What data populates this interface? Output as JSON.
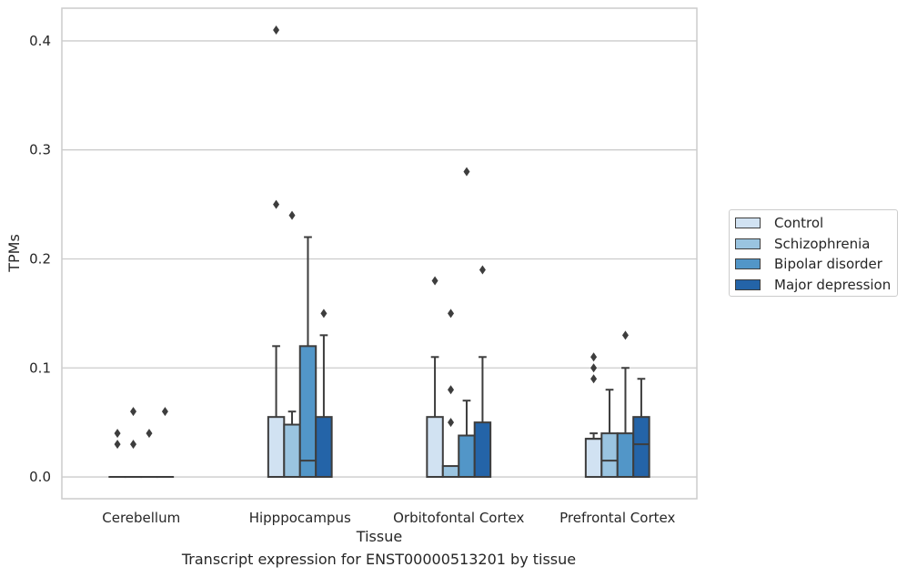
{
  "chart_data": {
    "type": "boxplot",
    "title": "",
    "caption": "Transcript expression for ENST00000513201 by tissue",
    "xlabel": "Tissue",
    "ylabel": "TPMs",
    "ylim": [
      -0.02,
      0.43
    ],
    "yticks": [
      0.0,
      0.1,
      0.2,
      0.3,
      0.4
    ],
    "ytick_labels": [
      "0.0",
      "0.1",
      "0.2",
      "0.3",
      "0.4"
    ],
    "grid": "horizontal",
    "legend_position": "right",
    "categories": [
      "Cerebellum",
      "Hipppocampus",
      "Orbitofontal Cortex",
      "Prefrontal Cortex"
    ],
    "series": [
      {
        "name": "Control",
        "color": "#d1e2f2",
        "boxes": [
          {
            "q1": 0,
            "median": 0,
            "q3": 0,
            "whisker_low": 0,
            "whisker_high": 0,
            "outliers": [
              0.03,
              0.04
            ]
          },
          {
            "q1": 0,
            "median": 0,
            "q3": 0.055,
            "whisker_low": 0,
            "whisker_high": 0.12,
            "outliers": [
              0.25,
              0.41
            ]
          },
          {
            "q1": 0,
            "median": 0,
            "q3": 0.055,
            "whisker_low": 0,
            "whisker_high": 0.11,
            "outliers": [
              0.18
            ]
          },
          {
            "q1": 0,
            "median": 0.035,
            "q3": 0.035,
            "whisker_low": 0,
            "whisker_high": 0.04,
            "outliers": [
              0.09,
              0.1,
              0.11
            ]
          }
        ]
      },
      {
        "name": "Schizophrenia",
        "color": "#9ac4e0",
        "boxes": [
          {
            "q1": 0,
            "median": 0,
            "q3": 0,
            "whisker_low": 0,
            "whisker_high": 0,
            "outliers": [
              0.03,
              0.06
            ]
          },
          {
            "q1": 0,
            "median": 0,
            "q3": 0.048,
            "whisker_low": 0,
            "whisker_high": 0.06,
            "outliers": [
              0.24
            ]
          },
          {
            "q1": 0,
            "median": 0,
            "q3": 0.01,
            "whisker_low": 0,
            "whisker_high": 0.01,
            "outliers": [
              0.05,
              0.08,
              0.15
            ]
          },
          {
            "q1": 0,
            "median": 0.015,
            "q3": 0.04,
            "whisker_low": 0,
            "whisker_high": 0.08,
            "outliers": []
          }
        ]
      },
      {
        "name": "Bipolar disorder",
        "color": "#5296c8",
        "boxes": [
          {
            "q1": 0,
            "median": 0,
            "q3": 0,
            "whisker_low": 0,
            "whisker_high": 0,
            "outliers": [
              0.04
            ]
          },
          {
            "q1": 0,
            "median": 0.015,
            "q3": 0.12,
            "whisker_low": 0,
            "whisker_high": 0.22,
            "outliers": []
          },
          {
            "q1": 0,
            "median": 0,
            "q3": 0.038,
            "whisker_low": 0,
            "whisker_high": 0.07,
            "outliers": [
              0.28
            ]
          },
          {
            "q1": 0,
            "median": 0,
            "q3": 0.04,
            "whisker_low": 0,
            "whisker_high": 0.1,
            "outliers": [
              0.13
            ]
          }
        ]
      },
      {
        "name": "Major depression",
        "color": "#2464a8",
        "boxes": [
          {
            "q1": 0,
            "median": 0,
            "q3": 0,
            "whisker_low": 0,
            "whisker_high": 0,
            "outliers": [
              0.06
            ]
          },
          {
            "q1": 0,
            "median": 0,
            "q3": 0.055,
            "whisker_low": 0,
            "whisker_high": 0.13,
            "outliers": [
              0.15
            ]
          },
          {
            "q1": 0,
            "median": 0,
            "q3": 0.05,
            "whisker_low": 0,
            "whisker_high": 0.11,
            "outliers": [
              0.19
            ]
          },
          {
            "q1": 0,
            "median": 0.03,
            "q3": 0.055,
            "whisker_low": 0,
            "whisker_high": 0.09,
            "outliers": []
          }
        ]
      }
    ]
  }
}
